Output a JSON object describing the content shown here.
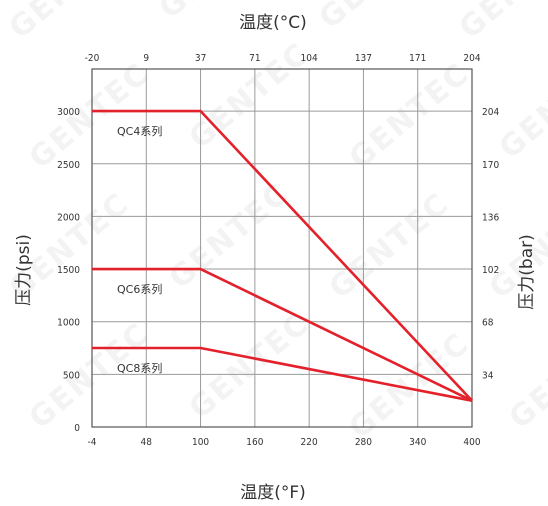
{
  "chart_data": {
    "type": "line",
    "title": "温度(°C)",
    "xlabel": "温度(°F)",
    "ylabel": "压力(psi)",
    "y2label": "压力(bar)",
    "x_ticks": [
      "-4",
      "48",
      "100",
      "160",
      "220",
      "280",
      "340",
      "400"
    ],
    "x_top_ticks": [
      "-20",
      "9",
      "37",
      "71",
      "104",
      "137",
      "171",
      "204"
    ],
    "y_ticks": [
      "0",
      "500",
      "1000",
      "1500",
      "2000",
      "2500",
      "3000"
    ],
    "y2_ticks": [
      "34",
      "68",
      "102",
      "136",
      "170",
      "204"
    ],
    "xlim_index": [
      0,
      7
    ],
    "ylim": [
      0,
      3400
    ],
    "grid": true,
    "series": [
      {
        "name": "QC4系列",
        "points": [
          [
            -4,
            3000
          ],
          [
            100,
            3000
          ],
          [
            400,
            250
          ]
        ]
      },
      {
        "name": "QC6系列",
        "points": [
          [
            -4,
            1500
          ],
          [
            100,
            1500
          ],
          [
            400,
            250
          ]
        ]
      },
      {
        "name": "QC8系列",
        "points": [
          [
            -4,
            750
          ],
          [
            100,
            750
          ],
          [
            400,
            250
          ]
        ]
      }
    ],
    "line_color": "#e4212b",
    "watermark": "GENTEC"
  }
}
